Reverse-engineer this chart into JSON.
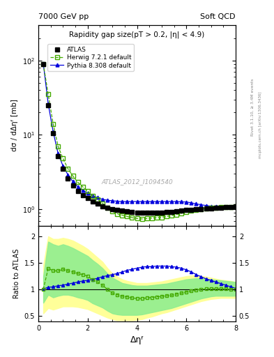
{
  "title_left": "7000 GeV pp",
  "title_right": "Soft QCD",
  "right_label1": "Rivet 3.1.10, ≥ 3.4M events",
  "right_label2": "mcplots.cern.ch [arXiv:1306.3436]",
  "plot_title": "Rapidity gap size(pT > 0.2, |η| < 4.9)",
  "ylabel_main": "dσ / dΔηᶠ [mb]",
  "ylabel_ratio": "Ratio to ATLAS",
  "xlabel": "Δηᶠ",
  "watermark": "ATLAS_2012_I1094540",
  "atlas_x": [
    0.2,
    0.4,
    0.6,
    0.8,
    1.0,
    1.2,
    1.4,
    1.6,
    1.8,
    2.0,
    2.2,
    2.4,
    2.6,
    2.8,
    3.0,
    3.2,
    3.4,
    3.6,
    3.8,
    4.0,
    4.2,
    4.4,
    4.6,
    4.8,
    5.0,
    5.2,
    5.4,
    5.6,
    5.8,
    6.0,
    6.2,
    6.4,
    6.6,
    6.8,
    7.0,
    7.2,
    7.4,
    7.6,
    7.8,
    8.0
  ],
  "atlas_y": [
    90.0,
    25.0,
    10.5,
    5.2,
    3.5,
    2.6,
    2.1,
    1.75,
    1.55,
    1.4,
    1.28,
    1.18,
    1.1,
    1.05,
    1.0,
    0.97,
    0.95,
    0.93,
    0.92,
    0.9,
    0.89,
    0.89,
    0.9,
    0.9,
    0.9,
    0.91,
    0.92,
    0.93,
    0.95,
    0.97,
    0.99,
    1.0,
    1.01,
    1.02,
    1.03,
    1.04,
    1.05,
    1.06,
    1.07,
    1.08
  ],
  "herwig_x": [
    0.2,
    0.4,
    0.6,
    0.8,
    1.0,
    1.2,
    1.4,
    1.6,
    1.8,
    2.0,
    2.2,
    2.4,
    2.6,
    2.8,
    3.0,
    3.2,
    3.4,
    3.6,
    3.8,
    4.0,
    4.2,
    4.4,
    4.6,
    4.8,
    5.0,
    5.2,
    5.4,
    5.6,
    5.8,
    6.0,
    6.2,
    6.4,
    6.6,
    6.8,
    7.0,
    7.2,
    7.4,
    7.6,
    7.8,
    8.0
  ],
  "herwig_y": [
    90.0,
    35.0,
    14.0,
    7.0,
    4.8,
    3.5,
    2.8,
    2.3,
    2.0,
    1.75,
    1.5,
    1.35,
    1.2,
    1.05,
    0.93,
    0.87,
    0.83,
    0.8,
    0.77,
    0.75,
    0.74,
    0.75,
    0.76,
    0.77,
    0.78,
    0.8,
    0.82,
    0.85,
    0.88,
    0.92,
    0.96,
    0.99,
    1.01,
    1.03,
    1.04,
    1.05,
    1.06,
    1.07,
    1.07,
    1.08
  ],
  "pythia_x": [
    0.2,
    0.4,
    0.6,
    0.8,
    1.0,
    1.2,
    1.4,
    1.6,
    1.8,
    2.0,
    2.2,
    2.4,
    2.6,
    2.8,
    3.0,
    3.2,
    3.4,
    3.6,
    3.8,
    4.0,
    4.2,
    4.4,
    4.6,
    4.8,
    5.0,
    5.2,
    5.4,
    5.6,
    5.8,
    6.0,
    6.2,
    6.4,
    6.6,
    6.8,
    7.0,
    7.2,
    7.4,
    7.6,
    7.8,
    8.0
  ],
  "pythia_y": [
    91.0,
    26.0,
    11.0,
    5.6,
    3.8,
    2.9,
    2.35,
    2.0,
    1.78,
    1.64,
    1.52,
    1.43,
    1.36,
    1.32,
    1.3,
    1.28,
    1.27,
    1.27,
    1.27,
    1.27,
    1.27,
    1.27,
    1.27,
    1.27,
    1.27,
    1.27,
    1.27,
    1.27,
    1.26,
    1.25,
    1.22,
    1.18,
    1.15,
    1.12,
    1.1,
    1.08,
    1.07,
    1.06,
    1.06,
    1.06
  ],
  "ratio_herwig": [
    1.0,
    1.4,
    1.35,
    1.35,
    1.38,
    1.35,
    1.33,
    1.3,
    1.28,
    1.25,
    1.18,
    1.14,
    1.08,
    1.0,
    0.93,
    0.9,
    0.87,
    0.86,
    0.84,
    0.83,
    0.83,
    0.84,
    0.85,
    0.86,
    0.87,
    0.88,
    0.89,
    0.91,
    0.93,
    0.95,
    0.97,
    0.99,
    1.0,
    1.01,
    1.01,
    1.01,
    1.01,
    1.01,
    1.0,
    1.0
  ],
  "ratio_pythia": [
    1.01,
    1.04,
    1.05,
    1.07,
    1.08,
    1.1,
    1.12,
    1.14,
    1.16,
    1.17,
    1.19,
    1.21,
    1.24,
    1.26,
    1.28,
    1.3,
    1.33,
    1.36,
    1.38,
    1.4,
    1.42,
    1.43,
    1.43,
    1.44,
    1.44,
    1.44,
    1.43,
    1.42,
    1.4,
    1.37,
    1.33,
    1.28,
    1.24,
    1.2,
    1.17,
    1.14,
    1.11,
    1.08,
    1.05,
    1.02
  ],
  "ratio_green_lo": [
    0.75,
    0.9,
    0.85,
    0.88,
    0.9,
    0.9,
    0.88,
    0.85,
    0.83,
    0.8,
    0.74,
    0.7,
    0.66,
    0.6,
    0.55,
    0.53,
    0.52,
    0.52,
    0.52,
    0.52,
    0.53,
    0.55,
    0.57,
    0.59,
    0.61,
    0.63,
    0.65,
    0.68,
    0.71,
    0.74,
    0.77,
    0.8,
    0.83,
    0.85,
    0.87,
    0.88,
    0.88,
    0.88,
    0.88,
    0.88
  ],
  "ratio_green_hi": [
    1.25,
    1.9,
    1.85,
    1.82,
    1.85,
    1.82,
    1.78,
    1.73,
    1.68,
    1.63,
    1.55,
    1.48,
    1.4,
    1.3,
    1.22,
    1.17,
    1.12,
    1.1,
    1.08,
    1.07,
    1.07,
    1.07,
    1.08,
    1.09,
    1.1,
    1.11,
    1.13,
    1.15,
    1.17,
    1.19,
    1.2,
    1.21,
    1.21,
    1.2,
    1.19,
    1.18,
    1.17,
    1.16,
    1.15,
    1.14
  ],
  "ratio_yellow_lo": [
    0.55,
    0.65,
    0.62,
    0.65,
    0.68,
    0.68,
    0.68,
    0.67,
    0.65,
    0.63,
    0.59,
    0.55,
    0.51,
    0.47,
    0.44,
    0.42,
    0.42,
    0.42,
    0.42,
    0.43,
    0.44,
    0.47,
    0.49,
    0.52,
    0.55,
    0.57,
    0.6,
    0.63,
    0.66,
    0.69,
    0.72,
    0.75,
    0.78,
    0.8,
    0.82,
    0.83,
    0.84,
    0.84,
    0.84,
    0.84
  ],
  "ratio_yellow_hi": [
    1.45,
    2.0,
    1.95,
    1.95,
    1.97,
    1.95,
    1.92,
    1.87,
    1.82,
    1.76,
    1.68,
    1.6,
    1.52,
    1.4,
    1.3,
    1.24,
    1.19,
    1.16,
    1.14,
    1.12,
    1.12,
    1.12,
    1.13,
    1.14,
    1.15,
    1.17,
    1.19,
    1.21,
    1.23,
    1.25,
    1.26,
    1.26,
    1.25,
    1.24,
    1.22,
    1.2,
    1.18,
    1.17,
    1.16,
    1.14
  ],
  "color_atlas": "#000000",
  "color_herwig": "#44aa00",
  "color_pythia": "#0000dd",
  "color_green": "#90ee90",
  "color_yellow": "#ffff99",
  "xlim": [
    0,
    8
  ],
  "ylim_main": [
    0.6,
    300
  ],
  "ylim_ratio": [
    0.4,
    2.2
  ],
  "yticks_ratio": [
    0.5,
    1.0,
    1.5,
    2.0
  ],
  "ytick_labels_ratio": [
    "0.5",
    "1",
    "1.5",
    "2"
  ]
}
